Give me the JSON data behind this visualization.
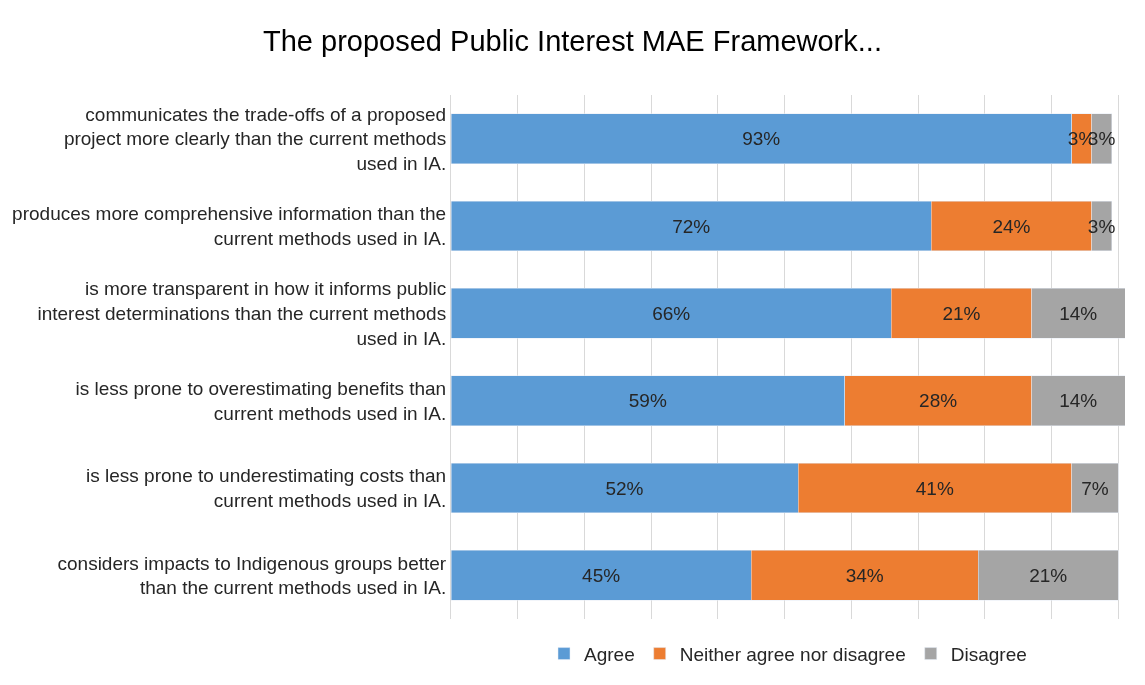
{
  "chart_data": {
    "type": "bar",
    "orientation": "horizontal",
    "stacked": true,
    "title": "The proposed Public Interest MAE Framework...",
    "categories": [
      "communicates the trade-offs of a proposed project more clearly than the current methods used in IA.",
      "produces more comprehensive information than the current methods used in IA.",
      "is more transparent in how it informs public interest determinations than the current methods used in IA.",
      "is less prone to overestimating benefits than current methods used in IA.",
      "is less prone to underestimating costs than current methods used in IA.",
      "considers impacts to Indigenous groups better than the current methods used in IA."
    ],
    "series": [
      {
        "name": "Agree",
        "color": "#5b9bd5",
        "values": [
          93,
          72,
          66,
          59,
          52,
          45
        ],
        "value_labels": [
          "93%",
          "72%",
          "66%",
          "59%",
          "52%",
          "45%"
        ]
      },
      {
        "name": "Neither agree nor disagree",
        "color": "#ed7d31",
        "values": [
          3,
          24,
          21,
          28,
          41,
          34
        ],
        "value_labels": [
          "3%",
          "24%",
          "21%",
          "28%",
          "41%",
          "34%"
        ]
      },
      {
        "name": "Disagree",
        "color": "#a5a5a5",
        "values": [
          3,
          3,
          14,
          14,
          7,
          21
        ],
        "value_labels": [
          "3%",
          "3%",
          "14%",
          "14%",
          "7%",
          "21%"
        ]
      }
    ],
    "xlim": [
      0,
      101
    ],
    "xticks": [
      {
        "value": 0,
        "label": null
      },
      {
        "value": 10,
        "label": null
      },
      {
        "value": 20,
        "label": null
      },
      {
        "value": 30,
        "label": null
      },
      {
        "value": 40,
        "label": null
      },
      {
        "value": 50,
        "label": null
      },
      {
        "value": 60,
        "label": null
      },
      {
        "value": 70,
        "label": null
      },
      {
        "value": 80,
        "label": null
      },
      {
        "value": 90,
        "label": null
      },
      {
        "value": 100,
        "label": null
      }
    ],
    "tick_labels": "y",
    "grid": "x",
    "legend": "bottom"
  }
}
